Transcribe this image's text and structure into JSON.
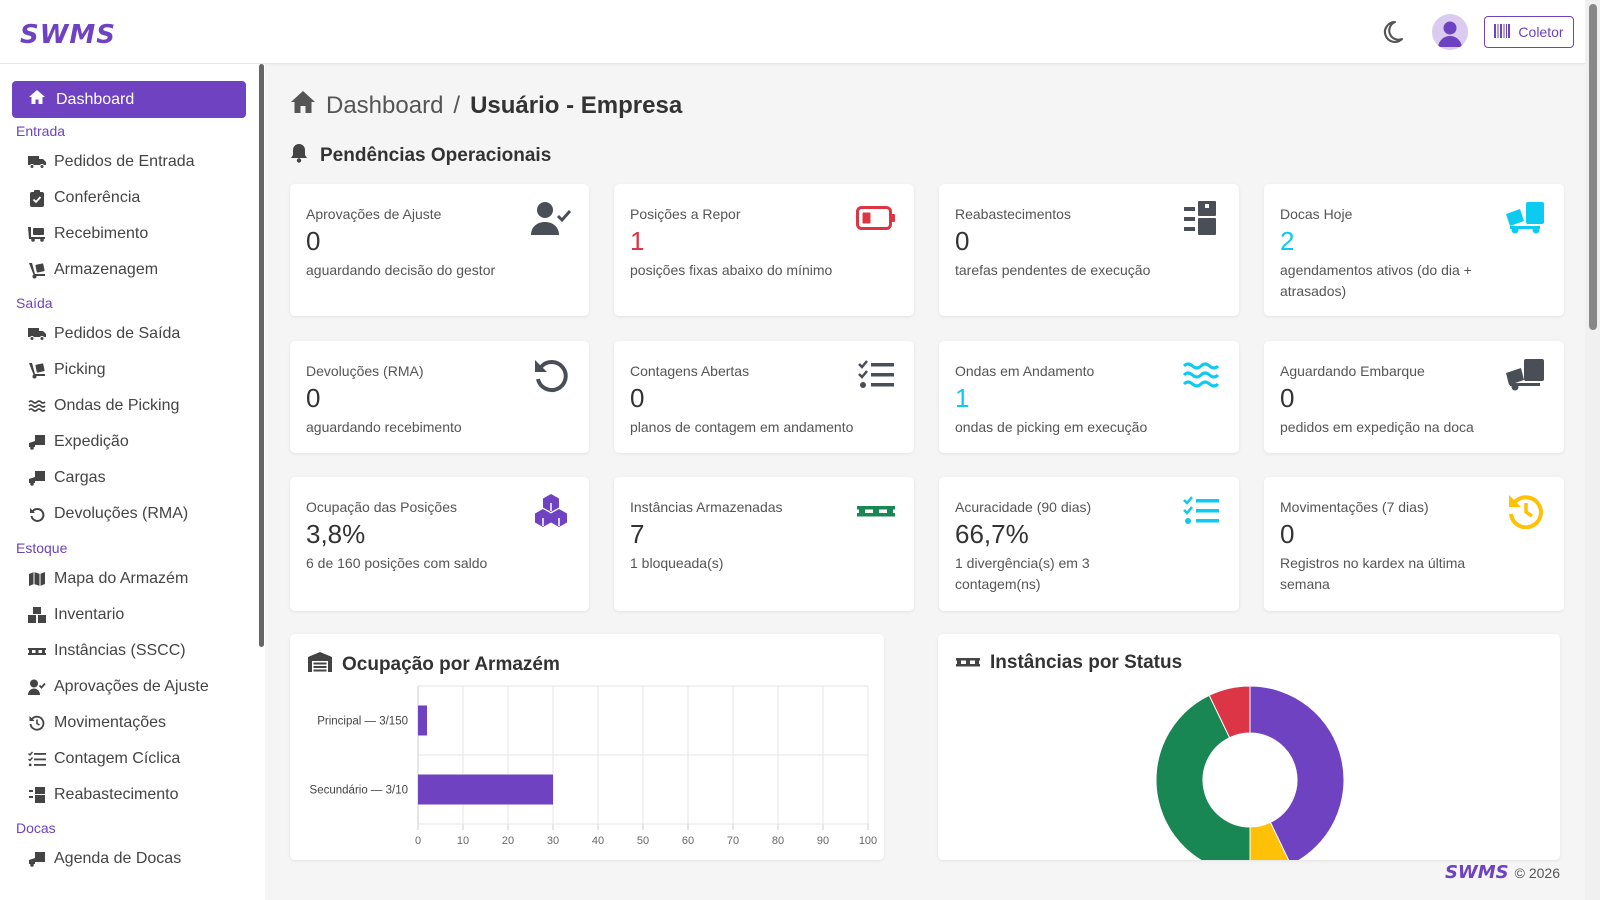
{
  "app": {
    "logo": "SWMS",
    "collector_label": "Coletor"
  },
  "sidebar": {
    "active": "Dashboard",
    "sections": {
      "entrada": "Entrada",
      "saida": "Saída",
      "estoque": "Estoque",
      "docas": "Docas"
    },
    "items": {
      "pedidos_entrada": "Pedidos de Entrada",
      "conferencia": "Conferência",
      "recebimento": "Recebimento",
      "armazenagem": "Armazenagem",
      "pedidos_saida": "Pedidos de Saída",
      "picking": "Picking",
      "ondas": "Ondas de Picking",
      "expedicao": "Expedição",
      "cargas": "Cargas",
      "devolucoes": "Devoluções (RMA)",
      "mapa": "Mapa do Armazém",
      "inventario": "Inventario",
      "instancias": "Instâncias (SSCC)",
      "aprovacoes": "Aprovações de Ajuste",
      "movimentacoes": "Movimentações",
      "contagem": "Contagem Cíclica",
      "reabastecimento": "Reabastecimento",
      "agenda_docas": "Agenda de Docas"
    }
  },
  "header": {
    "breadcrumb_root": "Dashboard",
    "separator": "/",
    "breadcrumb_current": "Usuário - Empresa"
  },
  "pendencias": {
    "title": "Pendências Operacionais",
    "cards": [
      {
        "label": "Aprovações de Ajuste",
        "value": "0",
        "desc": "aguardando decisão do gestor",
        "icon": "user-check-icon",
        "value_color": "#333333"
      },
      {
        "label": "Posições a Repor",
        "value": "1",
        "desc": "posições fixas abaixo do mínimo",
        "icon": "battery-low-icon",
        "value_color": "#dc3545"
      },
      {
        "label": "Reabastecimentos",
        "value": "0",
        "desc": "tarefas pendentes de execução",
        "icon": "dolly-boxes-icon",
        "value_color": "#333333"
      },
      {
        "label": "Docas Hoje",
        "value": "2",
        "desc": "agendamentos ativos (do dia + atrasados)",
        "icon": "truck-loading-icon",
        "value_color": "#0dcaf0"
      },
      {
        "label": "Devoluções (RMA)",
        "value": "0",
        "desc": "aguardando recebimento",
        "icon": "undo-icon",
        "value_color": "#333333"
      },
      {
        "label": "Contagens Abertas",
        "value": "0",
        "desc": "planos de contagem em andamento",
        "icon": "list-check-icon",
        "value_color": "#333333"
      },
      {
        "label": "Ondas em Andamento",
        "value": "1",
        "desc": "ondas de picking em execução",
        "icon": "water-icon",
        "value_color": "#0dcaf0"
      },
      {
        "label": "Aguardando Embarque",
        "value": "0",
        "desc": "pedidos em expedição na doca",
        "icon": "truck-ramp-icon",
        "value_color": "#333333"
      },
      {
        "label": "Ocupação das Posições",
        "value": "3,8%",
        "desc": "6 de 160 posições com saldo",
        "icon": "cubes-icon",
        "value_color": "#333333"
      },
      {
        "label": "Instâncias Armazenadas",
        "value": "7",
        "desc": "1 bloqueada(s)",
        "icon": "pallet-icon",
        "value_color": "#333333"
      },
      {
        "label": "Acuracidade (90 dias)",
        "value": "66,7%",
        "desc": "1 divergência(s) em 3 contagem(ns)",
        "icon": "list-check-icon",
        "value_color": "#333333"
      },
      {
        "label": "Movimentações (7 dias)",
        "value": "0",
        "desc": "Registros no kardex na última semana",
        "icon": "history-icon",
        "value_color": "#333333"
      }
    ]
  },
  "colors": {
    "accent": "#6f42c1",
    "danger": "#dc3545",
    "info": "#0dcaf0",
    "success": "#198754",
    "warning": "#ffc107",
    "muted_icon": "#4a4f57"
  },
  "chart_data": [
    {
      "type": "bar",
      "title": "Ocupação por Armazém",
      "orientation": "horizontal",
      "categories": [
        "Principal — 3/150",
        "Secundário — 3/10"
      ],
      "values": [
        2,
        30
      ],
      "xlim": [
        0,
        100
      ],
      "xticks": [
        "0",
        "10",
        "20",
        "30",
        "40",
        "50",
        "60",
        "70",
        "80",
        "90",
        "100"
      ],
      "color": "#6f42c1",
      "grid": true
    },
    {
      "type": "pie",
      "title": "Instâncias por Status",
      "donut": true,
      "slices": [
        {
          "value": 3,
          "color": "#6f42c1"
        },
        {
          "value": 0.5,
          "color": "#ffc107"
        },
        {
          "value": 3,
          "color": "#198754"
        },
        {
          "value": 0.5,
          "color": "#dc3545"
        }
      ]
    }
  ],
  "footer": {
    "logo": "SWMS",
    "copyright": "© 2026"
  }
}
